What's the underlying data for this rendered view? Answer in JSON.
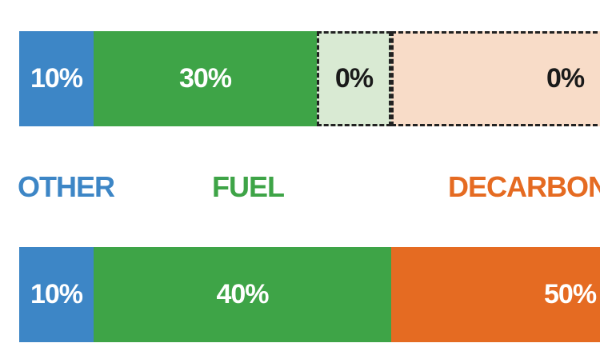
{
  "chart_data": {
    "type": "bar",
    "orientation": "horizontal-stacked",
    "categories": [
      "OTHER",
      "FUEL",
      "DECARBONI"
    ],
    "colors": {
      "other": "#3d86c6",
      "fuel": "#3ea447",
      "fuel_light": "#d9ead3",
      "decarb": "#e56b22",
      "decarb_light": "#f8dcc8"
    },
    "bars": [
      {
        "segments": [
          {
            "category": "OTHER",
            "value": 10,
            "label": "10%",
            "fill": "other",
            "style": "solid"
          },
          {
            "category": "FUEL",
            "value": 30,
            "label": "30%",
            "fill": "fuel",
            "style": "solid"
          },
          {
            "category": "FUEL",
            "value": 10,
            "label": "0%",
            "fill": "fuel_light",
            "style": "dashed"
          },
          {
            "category": "DECARBONI",
            "value": 50,
            "label": "0%",
            "fill": "decarb_light",
            "style": "dashed"
          }
        ]
      },
      {
        "segments": [
          {
            "category": "OTHER",
            "value": 10,
            "label": "10%",
            "fill": "other",
            "style": "solid"
          },
          {
            "category": "FUEL",
            "value": 40,
            "label": "40%",
            "fill": "fuel",
            "style": "solid"
          },
          {
            "category": "DECARBONI",
            "value": 50,
            "label": "50%",
            "fill": "decarb",
            "style": "solid"
          }
        ]
      }
    ],
    "category_labels": [
      {
        "text": "OTHER",
        "color": "other"
      },
      {
        "text": "FUEL",
        "color": "fuel"
      },
      {
        "text": "DECARBONI",
        "color": "decarb"
      }
    ]
  }
}
